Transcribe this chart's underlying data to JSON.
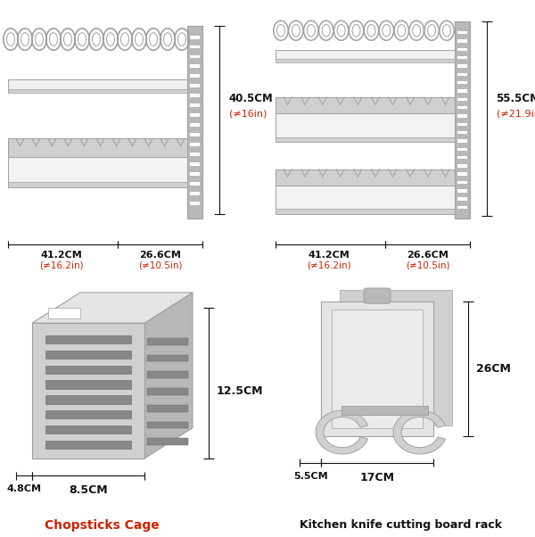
{
  "bg_color": "#ffffff",
  "red_color": "#cc2200",
  "black_color": "#111111",
  "gray1": "#b8b8b8",
  "gray2": "#d0d0d0",
  "gray3": "#e5e5e5",
  "gray4": "#a0a0a0",
  "gray5": "#c8c8c8",
  "top_left": {
    "height_cm": "40.5CM",
    "height_in": "(≠16in)",
    "width1_cm": "41.2CM",
    "width1_in": "(≠16.2in)",
    "width2_cm": "26.6CM",
    "width2_in": "(≠10.5in)"
  },
  "top_right": {
    "height_cm": "55.5CM",
    "height_in": "(≠21.9in)",
    "width1_cm": "41.2CM",
    "width1_in": "(≠16.2in)",
    "width2_cm": "26.6CM",
    "width2_in": "(≠10.5in)"
  },
  "bottom_left": {
    "height_cm": "12.5CM",
    "width1_cm": "4.8CM",
    "width2_cm": "8.5CM",
    "label": "Chopsticks Cage"
  },
  "bottom_right": {
    "height_cm": "26CM",
    "width1_cm": "5.5CM",
    "width2_cm": "17CM",
    "label": "Kitchen knife cutting board rack"
  }
}
